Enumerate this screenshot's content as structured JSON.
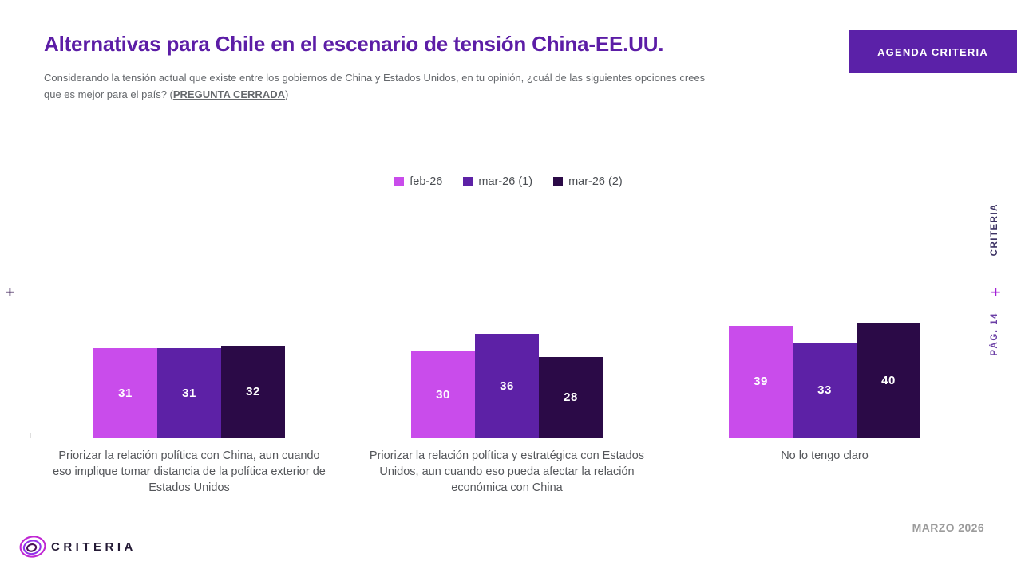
{
  "header": {
    "title": "Alternativas para Chile en el escenario de tensión China-EE.UU.",
    "subtitle_prefix": "Considerando la tensión actual que existe entre los gobiernos de China y Estados Unidos, en tu opinión, ¿cuál de las siguientes opciones crees que es mejor para el país? (",
    "subtitle_underlined": "PREGUNTA CERRADA",
    "subtitle_suffix": ")",
    "button_label": "AGENDA CRITERIA"
  },
  "chart_data": {
    "type": "bar",
    "categories": [
      "Priorizar la relación política con China, aun cuando eso implique tomar distancia de la política exterior de Estados Unidos",
      "Priorizar la relación política y estratégica con Estados Unidos, aun cuando eso pueda afectar la relación económica con China",
      "No lo tengo claro"
    ],
    "series": [
      {
        "name": "feb-26",
        "color": "#c94ceb",
        "values": [
          31,
          30,
          39
        ]
      },
      {
        "name": "mar-26 (1)",
        "color": "#5d21a6",
        "values": [
          31,
          36,
          33
        ]
      },
      {
        "name": "mar-26 (2)",
        "color": "#2b0a47",
        "values": [
          32,
          28,
          40
        ]
      }
    ],
    "ylim": [
      0,
      45
    ],
    "grid": false,
    "legend_position": "top-center",
    "value_labels": true,
    "title": "",
    "xlabel": "",
    "ylabel": ""
  },
  "side": {
    "left_plus": "+",
    "right_plus": "+",
    "vertical_brand": "CRITERIA",
    "page_label": "PÁG. 14"
  },
  "footer": {
    "brand": "CRITERIA",
    "date": "MARZO 2026"
  },
  "colors": {
    "title_purple": "#5c1da6",
    "button_purple": "#5b21a8",
    "series_feb26": "#c94ceb",
    "series_mar26_1": "#5d21a6",
    "series_mar26_2": "#2b0a47",
    "baseline_gray": "#dedede",
    "text_gray": "#65686c"
  }
}
